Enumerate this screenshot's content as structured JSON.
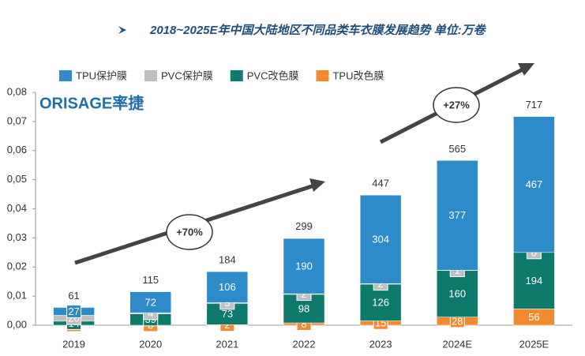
{
  "chart_data": {
    "type": "bar",
    "title": "2018~2025E年中国大陆地区不同品类车衣膜发展趋势  单位:万卷",
    "logo": "ORISAGE率捷",
    "annotations": [
      "+70%",
      "+27%"
    ],
    "categories": [
      "2019",
      "2020",
      "2021",
      "2022",
      "2023",
      "2024E",
      "2025E"
    ],
    "series": [
      {
        "name": "TPU改色膜",
        "color": "#f28a30",
        "values": [
          0,
          0,
          0.0002,
          0.0008,
          0.0015,
          0.0028,
          0.0056
        ],
        "value_labels": [
          "0",
          "0",
          "2",
          "8",
          "15",
          "28",
          "56"
        ]
      },
      {
        "name": "PVC改色膜",
        "color": "#0e7a6b",
        "values": [
          0.0014,
          0.0039,
          0.0073,
          0.0098,
          0.0126,
          0.016,
          0.0194
        ],
        "value_labels": [
          "14",
          "39",
          "73",
          "98",
          "126",
          "160",
          "194"
        ]
      },
      {
        "name": "PVC保护膜",
        "color": "#bfbfbf",
        "values": [
          0.002,
          0.0004,
          0.0003,
          0.0002,
          0.0002,
          0.0001,
          0
        ],
        "value_labels": [
          "20",
          "4",
          "3",
          "2",
          "2",
          "1",
          "0"
        ]
      },
      {
        "name": "TPU保护膜",
        "color": "#2e8bc9",
        "values": [
          0.0027,
          0.0072,
          0.0106,
          0.019,
          0.0304,
          0.0377,
          0.0467
        ],
        "value_labels": [
          "27",
          "72",
          "106",
          "190",
          "304",
          "377",
          "467"
        ]
      }
    ],
    "legend_order": [
      3,
      2,
      1,
      0
    ],
    "totals": {
      "values": [
        0.0061,
        0.0115,
        0.0184,
        0.0299,
        0.0447,
        0.0565,
        0.0717
      ],
      "value_labels": [
        "61",
        "115",
        "184",
        "299",
        "447",
        "565",
        "717"
      ]
    },
    "ylim": [
      0,
      0.08
    ],
    "yticks": [
      {
        "value": 0,
        "label": "0,00"
      },
      {
        "value": 0.01,
        "label": "0,01"
      },
      {
        "value": 0.02,
        "label": "0,02"
      },
      {
        "value": 0.03,
        "label": "0,03"
      },
      {
        "value": 0.04,
        "label": "0,04"
      },
      {
        "value": 0.05,
        "label": "0,05"
      },
      {
        "value": 0.06,
        "label": "0,06"
      },
      {
        "value": 0.07,
        "label": "0,07"
      },
      {
        "value": 0.08,
        "label": "0,08"
      }
    ],
    "grid": false
  }
}
